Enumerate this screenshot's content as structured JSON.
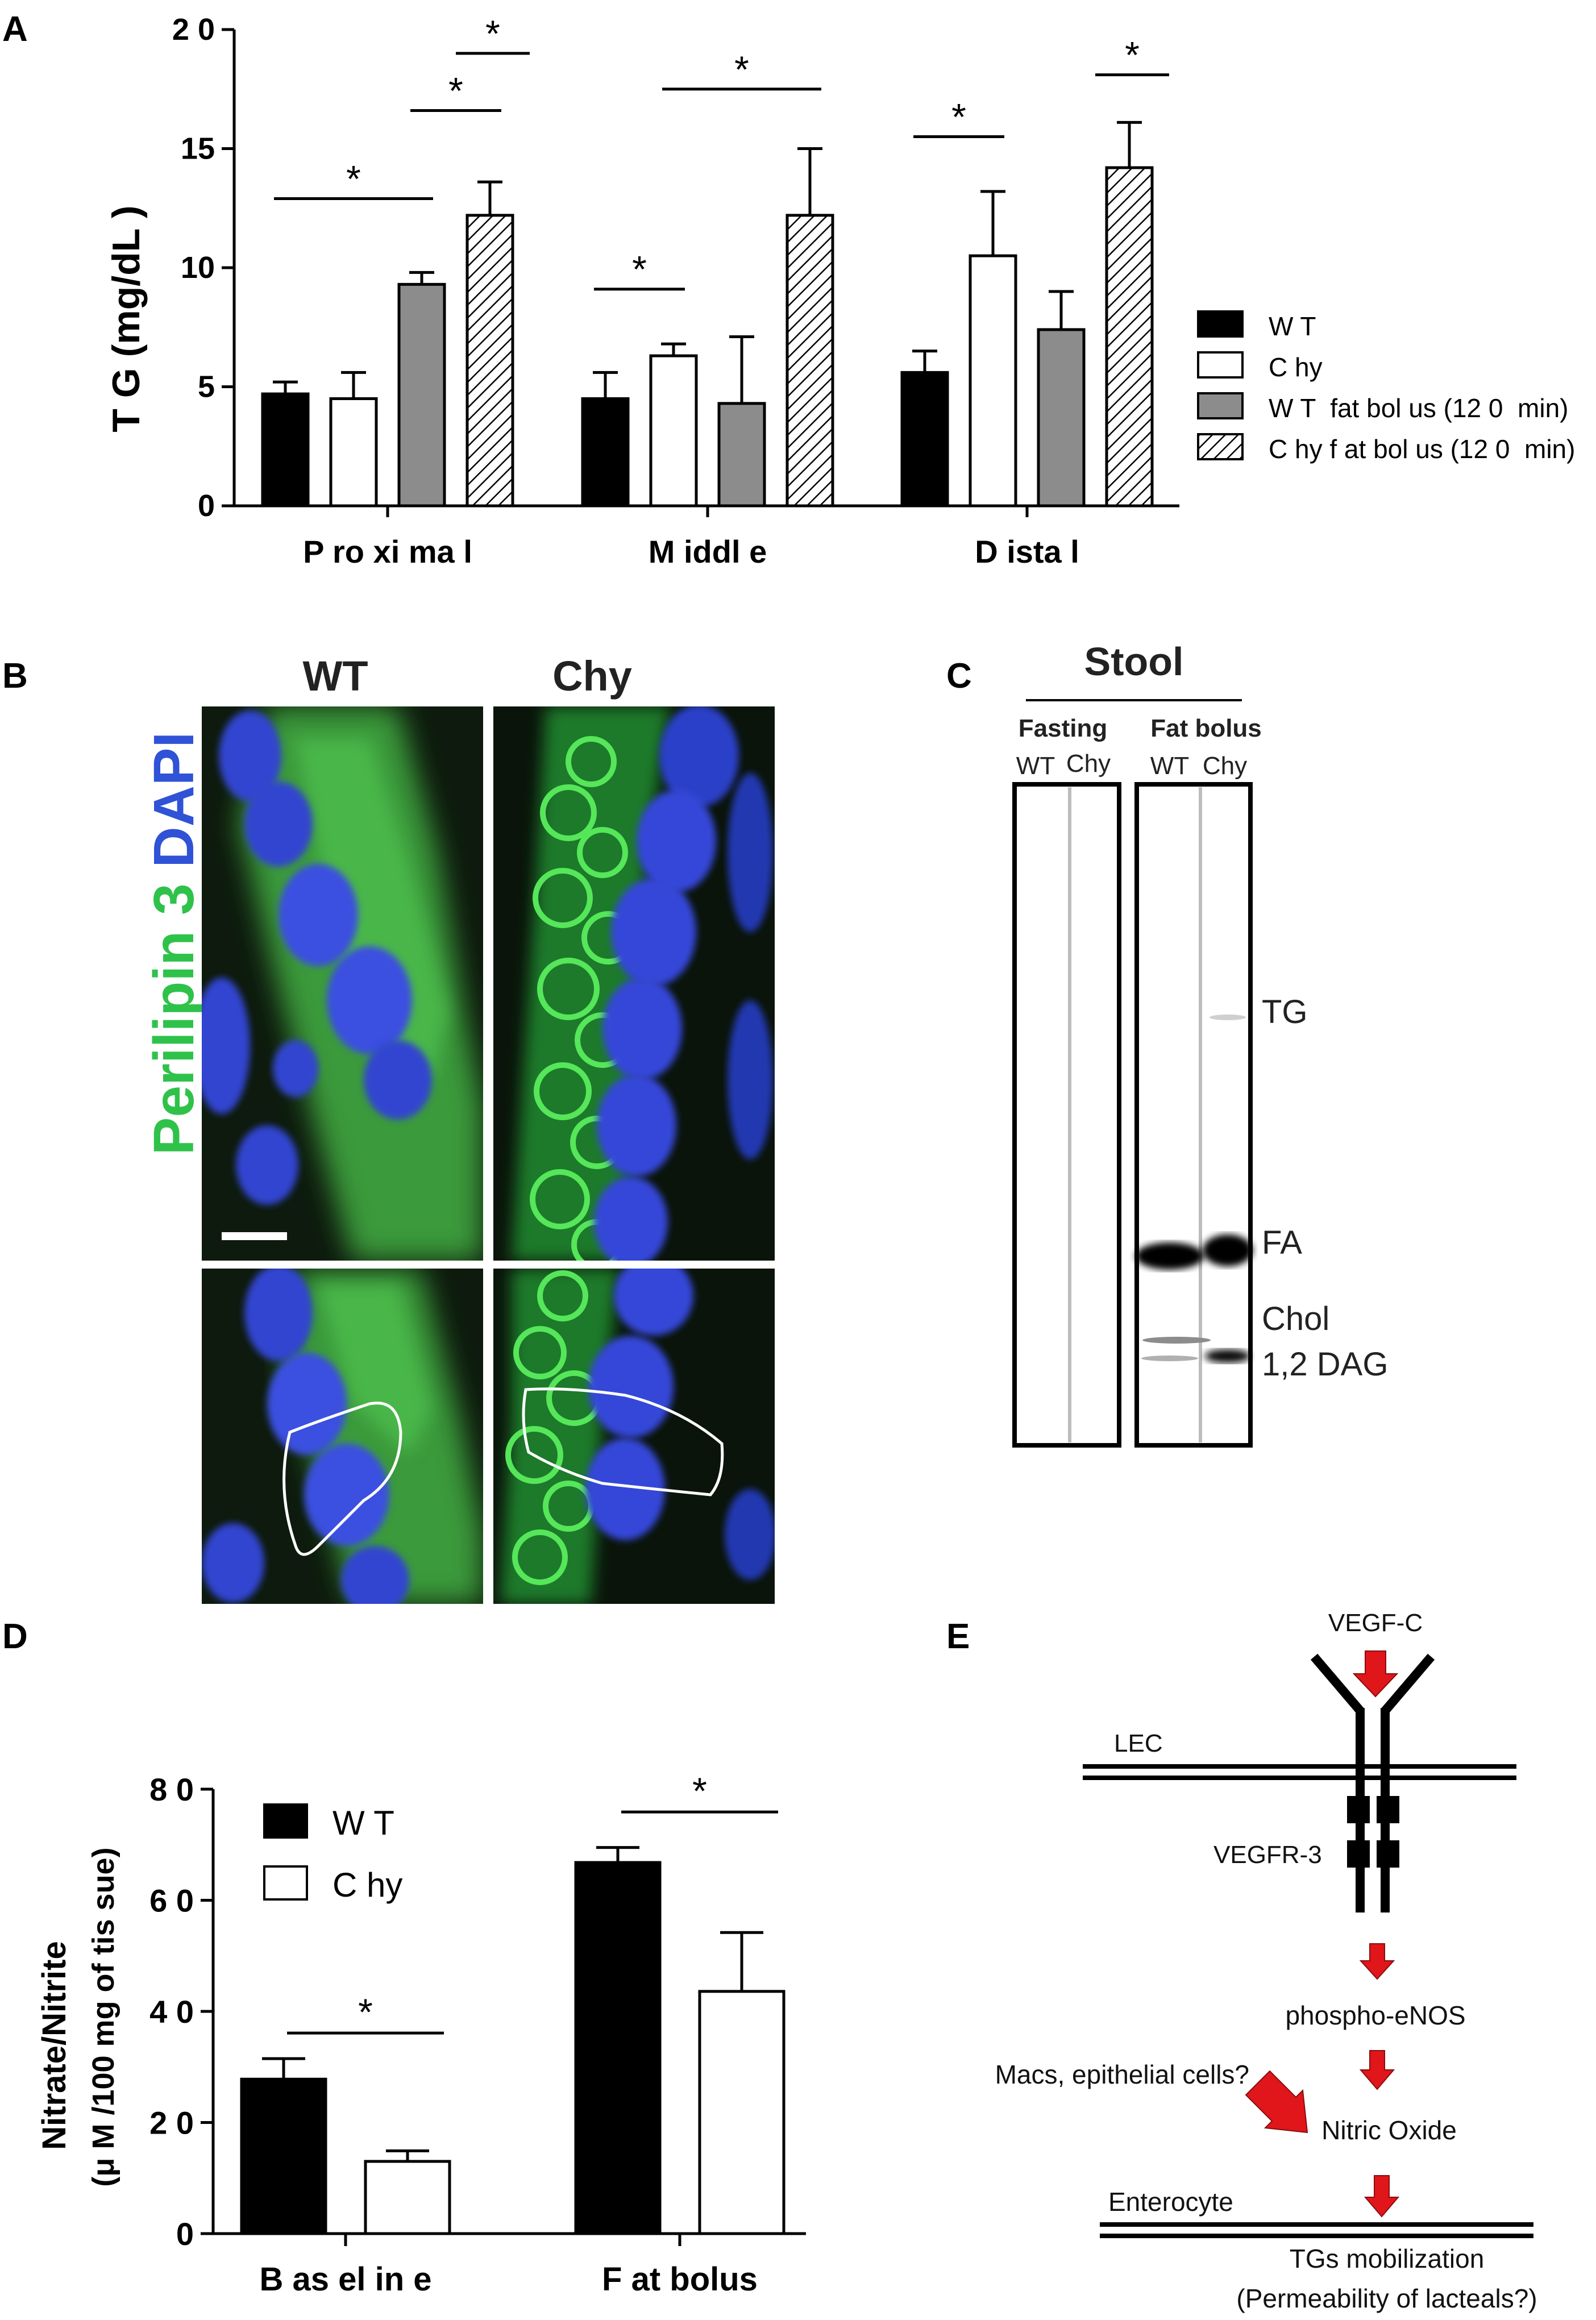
{
  "panel_letters": {
    "a": "A",
    "b": "B",
    "c": "C",
    "d": "D",
    "e": "E"
  },
  "colors": {
    "wt": "#000000",
    "chy": "#ffffff",
    "wt_fat": "#8c8c8c",
    "chy_fat_hatch": "#000000",
    "red_arrow": "#e0161b",
    "perilipin_green": "#2fc24a",
    "dapi_blue": "#2f52d6"
  },
  "chart_data": [
    {
      "panel": "A",
      "type": "bar",
      "categories": [
        "Proximal",
        "Middle",
        "Distal"
      ],
      "category_labels": [
        "P ro xi ma l",
        "M iddl e",
        "D ista l"
      ],
      "ylabel": "T G  (mg/dL )",
      "ylim": [
        0,
        20
      ],
      "yticks": [
        "0",
        "5",
        "10",
        "15",
        "2 0"
      ],
      "series": [
        {
          "name": "W T",
          "style": "black",
          "values": [
            4.7,
            4.5,
            5.6
          ],
          "errors": [
            0.5,
            1.1,
            0.9
          ]
        },
        {
          "name": "C hy",
          "style": "white",
          "values": [
            4.5,
            6.3,
            10.5
          ],
          "errors": [
            1.1,
            0.5,
            2.7
          ]
        },
        {
          "name": "W T  fat bol us (12 0  min)",
          "style": "gray",
          "values": [
            9.3,
            4.3,
            7.4
          ],
          "errors": [
            0.5,
            2.8,
            1.6
          ]
        },
        {
          "name": "C hy f at bol us (12 0  min)",
          "style": "hatch",
          "values": [
            12.2,
            12.2,
            14.2
          ],
          "errors": [
            1.4,
            2.8,
            1.9
          ]
        }
      ],
      "significance": [
        {
          "group": 0,
          "from": 0,
          "to": 2,
          "level": 12.9,
          "label": "*"
        },
        {
          "group": 0,
          "from": 2,
          "to": 3,
          "level": 16.6,
          "label": "*"
        },
        {
          "group": 0,
          "from": 3,
          "to": 3,
          "span": "short",
          "level": 19.0,
          "label": "*"
        },
        {
          "group": 1,
          "from": 0,
          "to": 1,
          "level": 9.1,
          "label": "*"
        },
        {
          "group": 1,
          "from": 1,
          "to": 3,
          "level": 17.5,
          "label": "*"
        },
        {
          "group": 2,
          "from": 0,
          "to": 1,
          "level": 15.5,
          "label": "*"
        },
        {
          "group": 2,
          "from": 3,
          "to": 3,
          "span": "short",
          "level": 18.1,
          "label": "*"
        }
      ],
      "legend_position": "right"
    },
    {
      "panel": "D",
      "type": "bar",
      "categories": [
        "Baseline",
        "Fat bolus"
      ],
      "category_labels": [
        "B as el in e",
        "F at  bolus"
      ],
      "ylabel_line1": "Nitrate/Nitrite",
      "ylabel_line2": "(μ M /100 mg  of  tis sue)",
      "ylim": [
        0,
        80
      ],
      "yticks": [
        "0",
        "2 0",
        "4 0",
        "6 0",
        "8 0"
      ],
      "series": [
        {
          "name": "W T",
          "style": "black",
          "values": [
            27.8,
            66.8
          ],
          "errors": [
            3.7,
            2.7
          ]
        },
        {
          "name": "C hy",
          "style": "white",
          "values": [
            13.0,
            43.6
          ],
          "errors": [
            1.9,
            10.6
          ]
        }
      ],
      "significance": [
        {
          "group": 0,
          "level": 36.1,
          "label": "*"
        },
        {
          "group": 1,
          "level": 75.9,
          "label": "*"
        }
      ],
      "legend_position": "top-left"
    }
  ],
  "panel_b": {
    "col_wt": "WT",
    "col_chy": "Chy",
    "stain_green": "Perilipin 3",
    "stain_blue": "DAPI"
  },
  "panel_c": {
    "title": "Stool",
    "group1": "Fasting",
    "group2": "Fat bolus",
    "lane_wt": "WT",
    "lane_chy": "Chy",
    "band_labels": [
      "TG",
      "FA",
      "Chol",
      "1,2 DAG"
    ]
  },
  "panel_e": {
    "ligand": "VEGF-C",
    "membrane1": "LEC",
    "receptor": "VEGFR-3",
    "step1": "phospho-eNOS",
    "source": "Macs, epithelial cells?",
    "step2": "Nitric Oxide",
    "membrane2": "Enterocyte",
    "outcome1": "TGs mobilization",
    "outcome2": "(Permeability of lacteals?)"
  }
}
